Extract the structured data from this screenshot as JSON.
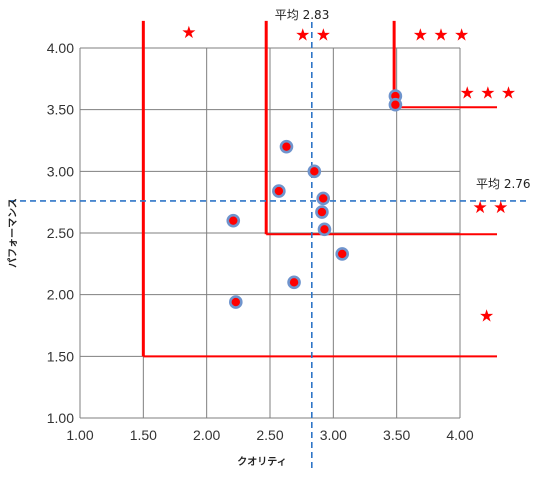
{
  "chart_data": {
    "type": "scatter",
    "title": "",
    "xlabel": "クオリティ",
    "ylabel": "パフォーマンス",
    "xlim": [
      1.0,
      4.0
    ],
    "ylim": [
      1.0,
      4.0
    ],
    "x_ticks": [
      "1.00",
      "1.50",
      "2.00",
      "2.50",
      "3.00",
      "3.50",
      "4.00"
    ],
    "y_ticks": [
      "1.00",
      "1.50",
      "2.00",
      "2.50",
      "3.00",
      "3.50",
      "4.00"
    ],
    "grid": true,
    "legend": "none",
    "points": [
      {
        "x": 3.49,
        "y": 3.61
      },
      {
        "x": 3.49,
        "y": 3.54
      },
      {
        "x": 2.63,
        "y": 3.2
      },
      {
        "x": 2.85,
        "y": 3.0
      },
      {
        "x": 2.57,
        "y": 2.84
      },
      {
        "x": 2.92,
        "y": 2.78
      },
      {
        "x": 2.91,
        "y": 2.67
      },
      {
        "x": 2.21,
        "y": 2.6
      },
      {
        "x": 2.93,
        "y": 2.53
      },
      {
        "x": 3.07,
        "y": 2.33
      },
      {
        "x": 2.69,
        "y": 2.1
      },
      {
        "x": 2.23,
        "y": 1.94
      }
    ],
    "averages": {
      "x": 2.83,
      "y": 2.76,
      "x_label": "平均 2.83",
      "y_label": "平均 2.76"
    },
    "tiers": [
      {
        "x": 1.5,
        "y": 1.5,
        "stars": "★"
      },
      {
        "x": 2.47,
        "y": 2.49,
        "stars": "★★"
      },
      {
        "x": 3.48,
        "y": 3.52,
        "stars": "★★★"
      }
    ],
    "star_annotations": [
      {
        "text": "★",
        "x": 1.86,
        "y": 4.13
      },
      {
        "text": "★ ★",
        "x": 2.84,
        "y": 4.11
      },
      {
        "text": "★ ★ ★",
        "x": 3.85,
        "y": 4.11
      },
      {
        "text": "★ ★ ★",
        "x": 4.22,
        "y": 3.64
      },
      {
        "text": "★ ★",
        "x": 4.24,
        "y": 2.71
      },
      {
        "text": "★",
        "x": 4.21,
        "y": 1.83
      }
    ],
    "colors": {
      "point_fill": "#ff0000",
      "point_stroke": "#6f94cd",
      "avg_line": "#2e75c7",
      "tier_line": "#ff0000",
      "grid": "#7f7f7f"
    }
  }
}
